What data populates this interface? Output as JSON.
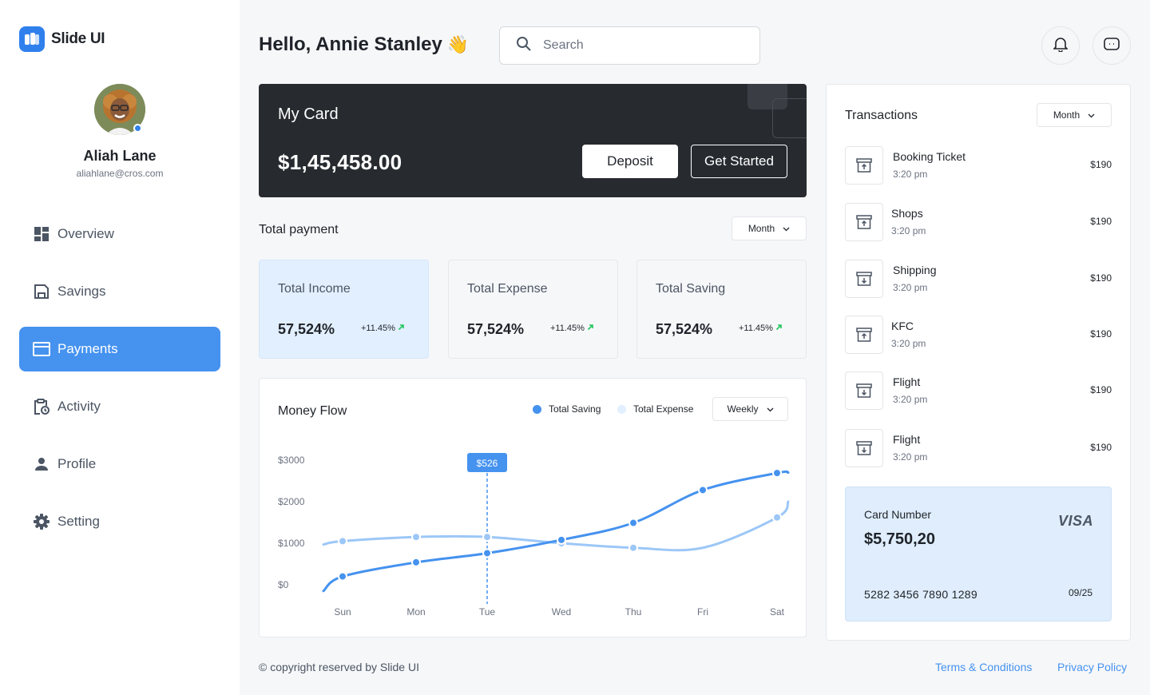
{
  "brand": {
    "name": "Slide UI"
  },
  "user": {
    "name": "Aliah Lane",
    "email": "aliahlane@cros.com"
  },
  "nav": [
    {
      "label": "Overview",
      "icon": "grid-icon",
      "active": false
    },
    {
      "label": "Savings",
      "icon": "save-icon",
      "active": false
    },
    {
      "label": "Payments",
      "icon": "credit-card-icon",
      "active": true
    },
    {
      "label": "Activity",
      "icon": "clipboard-clock-icon",
      "active": false
    },
    {
      "label": "Profile",
      "icon": "person-icon",
      "active": false
    },
    {
      "label": "Setting",
      "icon": "gear-icon",
      "active": false
    }
  ],
  "header": {
    "greeting": "Hello, Annie Stanley",
    "wave": "👋",
    "search_placeholder": "Search"
  },
  "my_card": {
    "title": "My Card",
    "balance": "$1,45,458.00",
    "deposit_label": "Deposit",
    "get_started_label": "Get Started"
  },
  "total_payment": {
    "title": "Total payment",
    "period": "Month",
    "stats": [
      {
        "label": "Total Income",
        "value": "57,524%",
        "change": "+11.45%"
      },
      {
        "label": "Total Expense",
        "value": "57,524%",
        "change": "+11.45%"
      },
      {
        "label": "Total Saving",
        "value": "57,524%",
        "change": "+11.45%"
      }
    ]
  },
  "money_flow": {
    "title": "Money Flow",
    "period": "Weekly",
    "legend": [
      "Total Saving",
      "Total Expense"
    ],
    "tooltip": "$526"
  },
  "chart_data": {
    "type": "line",
    "title": "Money Flow",
    "x": [
      "Sun",
      "Mon",
      "Tue",
      "Wed",
      "Thu",
      "Fri",
      "Sat"
    ],
    "y_ticks": [
      "$3000",
      "$2000",
      "$1000",
      "$0"
    ],
    "ylim": [
      0,
      3000
    ],
    "series": [
      {
        "name": "Total Saving",
        "color": "#4592ef",
        "values": [
          200,
          540,
          760,
          1080,
          1490,
          2280,
          2690
        ]
      },
      {
        "name": "Total Expense",
        "color": "#9cc7f7",
        "values": [
          1050,
          1150,
          1150,
          1000,
          890,
          890,
          1620
        ]
      }
    ],
    "highlight": {
      "x": "Tue",
      "label": "$526"
    },
    "legend_position": "top-right",
    "grid": false
  },
  "transactions": {
    "title": "Transactions",
    "period": "Month",
    "items": [
      {
        "name": "Booking Ticket",
        "time": "3:20 pm",
        "amount": "$190",
        "icon": "archive-up-icon"
      },
      {
        "name": "Shops",
        "time": "3:20 pm",
        "amount": "$190",
        "icon": "archive-up-icon"
      },
      {
        "name": "Shipping",
        "time": "3:20 pm",
        "amount": "$190",
        "icon": "archive-down-icon"
      },
      {
        "name": "KFC",
        "time": "3:20 pm",
        "amount": "$190",
        "icon": "archive-up-icon"
      },
      {
        "name": "Flight",
        "time": "3:20 pm",
        "amount": "$190",
        "icon": "archive-down-icon"
      },
      {
        "name": "Flight",
        "time": "3:20 pm",
        "amount": "$190",
        "icon": "archive-down-icon"
      }
    ]
  },
  "visa_card": {
    "label": "Card Number",
    "amount": "$5,750,20",
    "brand": "VISA",
    "number": "5282 3456 7890 1289",
    "expiry": "09/25"
  },
  "footer": {
    "copyright": "© copyright reserved by Slide UI",
    "terms": "Terms & Conditions",
    "privacy": "Privacy Policy"
  },
  "colors": {
    "accent": "#4592ef",
    "dark_card": "#272b30",
    "light_blue": "#e2effe",
    "up_arrow": "#22c55e"
  }
}
